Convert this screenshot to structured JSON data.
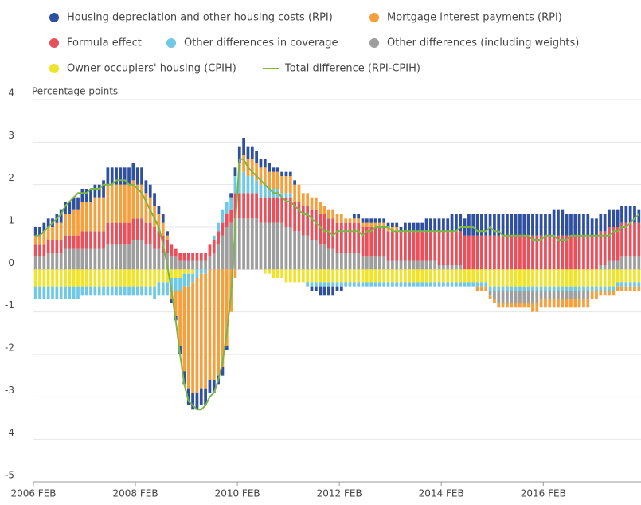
{
  "chart_data": {
    "type": "bar",
    "stacked": true,
    "y_label": "Percentage points",
    "categories": [
      "2006 FEB",
      null,
      null,
      null,
      null,
      null,
      null,
      null,
      null,
      null,
      null,
      null,
      null,
      null,
      null,
      null,
      null,
      null,
      null,
      null,
      null,
      null,
      null,
      null,
      "2008 FEB",
      null,
      null,
      null,
      null,
      null,
      null,
      null,
      null,
      null,
      null,
      null,
      null,
      null,
      null,
      null,
      null,
      null,
      null,
      null,
      null,
      null,
      null,
      null,
      "2010 FEB",
      null,
      null,
      null,
      null,
      null,
      null,
      null,
      null,
      null,
      null,
      null,
      null,
      null,
      null,
      null,
      null,
      null,
      null,
      null,
      null,
      null,
      null,
      null,
      "2012 FEB",
      null,
      null,
      null,
      null,
      null,
      null,
      null,
      null,
      null,
      null,
      null,
      null,
      null,
      null,
      null,
      null,
      null,
      null,
      null,
      null,
      null,
      null,
      null,
      "2014 FEB",
      null,
      null,
      null,
      null,
      null,
      null,
      null,
      null,
      null,
      null,
      null,
      null,
      null,
      null,
      null,
      null,
      null,
      null,
      null,
      null,
      null,
      null,
      null,
      "2016 FEB",
      null,
      null,
      null,
      null,
      null,
      null,
      null,
      null,
      null,
      null,
      null,
      null,
      null,
      null,
      null,
      null,
      null,
      null,
      null,
      null,
      null,
      null
    ],
    "ylim": [
      -5,
      4
    ],
    "yticks": [
      4,
      3,
      2,
      1,
      0,
      -1,
      -2,
      -3,
      -4,
      -5
    ],
    "grid": true,
    "series": [
      {
        "name": "Housing depreciation and other housing costs (RPI)",
        "color": "#2f4f9f",
        "values": [
          0.2,
          0.2,
          0.2,
          0.2,
          0.2,
          0.2,
          0.3,
          0.3,
          0.3,
          0.3,
          0.3,
          0.3,
          0.3,
          0.3,
          0.3,
          0.3,
          0.4,
          0.4,
          0.4,
          0.4,
          0.4,
          0.4,
          0.4,
          0.4,
          0.4,
          0.4,
          0.3,
          0.3,
          0.3,
          0.2,
          0.2,
          0.1,
          -0.1,
          -0.1,
          -0.2,
          -0.3,
          -0.4,
          -0.4,
          -0.4,
          -0.4,
          -0.4,
          -0.3,
          -0.3,
          -0.2,
          -0.2,
          -0.1,
          0.1,
          0.2,
          0.4,
          0.4,
          0.3,
          0.3,
          0.3,
          0.2,
          0.2,
          0.2,
          0.1,
          0.1,
          0.1,
          0.1,
          0.1,
          0.1,
          0,
          0,
          0,
          -0.1,
          -0.1,
          -0.2,
          -0.2,
          -0.2,
          -0.2,
          -0.1,
          -0.1,
          0,
          0,
          0.1,
          0.1,
          0.1,
          0.1,
          0.1,
          0.1,
          0.1,
          0.1,
          0.1,
          0.1,
          0.1,
          0.1,
          0.2,
          0.2,
          0.2,
          0.2,
          0.2,
          0.3,
          0.3,
          0.3,
          0.3,
          0.3,
          0.3,
          0.4,
          0.4,
          0.4,
          0.4,
          0.5,
          0.5,
          0.5,
          0.5,
          0.5,
          0.5,
          0.5,
          0.5,
          0.5,
          0.5,
          0.5,
          0.5,
          0.5,
          0.5,
          0.5,
          0.5,
          0.5,
          0.5,
          0.5,
          0.5,
          0.6,
          0.6,
          0.6,
          0.5,
          0.5,
          0.5,
          0.5,
          0.5,
          0.5,
          0.4,
          0.4,
          0.4,
          0.4,
          0.4,
          0.4,
          0.4,
          0.4,
          0.4,
          0.4,
          0.4,
          0.3
        ]
      },
      {
        "name": "Mortgage interest payments (RPI)",
        "color": "#f5a03c",
        "values": [
          0.2,
          0.2,
          0.3,
          0.3,
          0.3,
          0.4,
          0.4,
          0.5,
          0.5,
          0.6,
          0.6,
          0.7,
          0.7,
          0.7,
          0.8,
          0.8,
          0.8,
          0.9,
          0.9,
          0.9,
          0.9,
          0.9,
          0.9,
          0.9,
          0.8,
          0.8,
          0.7,
          0.6,
          0.5,
          0.4,
          0.3,
          0.1,
          -0.2,
          -0.6,
          -1.3,
          -2.0,
          -2.4,
          -2.6,
          -2.7,
          -2.7,
          -2.7,
          -2.6,
          -2.6,
          -2.5,
          -2.3,
          -1.8,
          -1.0,
          -0.2,
          0.2,
          0.4,
          0.4,
          0.4,
          0.4,
          0.4,
          0.4,
          0.4,
          0.4,
          0.4,
          0.4,
          0.4,
          0.4,
          0.4,
          0.4,
          0.3,
          0.3,
          0.3,
          0.3,
          0.3,
          0.2,
          0.2,
          0.2,
          0.2,
          0.2,
          0.1,
          0.1,
          0.1,
          0.1,
          0.1,
          0.1,
          0.1,
          0.1,
          0.1,
          0.1,
          0.1,
          0.1,
          0.1,
          0,
          0,
          0,
          0,
          0,
          0,
          0,
          0,
          0,
          0,
          0,
          0,
          0,
          0,
          0,
          0,
          0,
          0,
          -0.1,
          -0.1,
          -0.1,
          -0.1,
          -0.1,
          -0.1,
          -0.1,
          -0.1,
          -0.1,
          -0.1,
          -0.1,
          -0.1,
          -0.1,
          -0.2,
          -0.2,
          -0.2,
          -0.2,
          -0.2,
          -0.2,
          -0.2,
          -0.2,
          -0.2,
          -0.2,
          -0.2,
          -0.2,
          -0.2,
          -0.2,
          -0.2,
          -0.2,
          -0.1,
          -0.1,
          -0.1,
          -0.1,
          -0.1,
          -0.1,
          -0.1,
          -0.1,
          -0.1,
          -0.1
        ]
      },
      {
        "name": "Formula effect",
        "color": "#e8505b",
        "values": [
          0.3,
          0.3,
          0.3,
          0.3,
          0.3,
          0.3,
          0.3,
          0.3,
          0.3,
          0.3,
          0.3,
          0.4,
          0.4,
          0.4,
          0.4,
          0.4,
          0.4,
          0.5,
          0.5,
          0.5,
          0.5,
          0.5,
          0.5,
          0.5,
          0.5,
          0.5,
          0.5,
          0.5,
          0.5,
          0.4,
          0.4,
          0.3,
          0.3,
          0.2,
          0.2,
          0.2,
          0.2,
          0.2,
          0.2,
          0.2,
          0.2,
          0.3,
          0.3,
          0.3,
          0.3,
          0.3,
          0.3,
          0.6,
          0.6,
          0.6,
          0.6,
          0.6,
          0.6,
          0.6,
          0.6,
          0.6,
          0.6,
          0.6,
          0.6,
          0.7,
          0.7,
          0.7,
          0.7,
          0.7,
          0.7,
          0.7,
          0.7,
          0.7,
          0.7,
          0.7,
          0.7,
          0.7,
          0.7,
          0.7,
          0.7,
          0.7,
          0.7,
          0.7,
          0.7,
          0.7,
          0.7,
          0.7,
          0.7,
          0.7,
          0.7,
          0.7,
          0.7,
          0.7,
          0.7,
          0.7,
          0.7,
          0.7,
          0.7,
          0.7,
          0.7,
          0.8,
          0.8,
          0.8,
          0.8,
          0.8,
          0.8,
          0.8,
          0.8,
          0.8,
          0.8,
          0.8,
          0.8,
          0.8,
          0.8,
          0.8,
          0.8,
          0.8,
          0.8,
          0.8,
          0.8,
          0.8,
          0.8,
          0.8,
          0.8,
          0.8,
          0.8,
          0.8,
          0.8,
          0.8,
          0.8,
          0.8,
          0.8,
          0.8,
          0.8,
          0.8,
          0.8,
          0.8,
          0.8,
          0.8,
          0.8,
          0.8,
          0.8,
          0.8,
          0.8,
          0.8,
          0.8,
          0.8,
          0.8
        ]
      },
      {
        "name": "Other differences in coverage",
        "color": "#6fc8e6",
        "values": [
          -0.3,
          -0.3,
          -0.3,
          -0.3,
          -0.3,
          -0.3,
          -0.3,
          -0.3,
          -0.3,
          -0.3,
          -0.3,
          -0.2,
          -0.2,
          -0.2,
          -0.2,
          -0.2,
          -0.2,
          -0.2,
          -0.2,
          -0.2,
          -0.2,
          -0.2,
          -0.2,
          -0.2,
          -0.2,
          -0.2,
          -0.2,
          -0.2,
          -0.3,
          -0.3,
          -0.3,
          -0.3,
          -0.3,
          -0.3,
          -0.3,
          -0.3,
          -0.3,
          -0.2,
          -0.2,
          -0.1,
          -0.1,
          0,
          0.1,
          0.2,
          0.3,
          0.3,
          0.3,
          0.4,
          0.5,
          0.5,
          0.4,
          0.4,
          0.3,
          0.3,
          0.3,
          0.2,
          0.2,
          0.2,
          0.1,
          0.1,
          0.1,
          0,
          0,
          0,
          -0.1,
          -0.1,
          -0.1,
          -0.1,
          -0.1,
          -0.1,
          -0.1,
          -0.1,
          -0.1,
          -0.1,
          -0.1,
          -0.1,
          -0.1,
          -0.1,
          -0.1,
          -0.1,
          -0.1,
          -0.1,
          -0.1,
          -0.1,
          -0.1,
          -0.1,
          -0.1,
          -0.1,
          -0.1,
          -0.1,
          -0.1,
          -0.1,
          -0.1,
          -0.1,
          -0.1,
          -0.1,
          -0.1,
          -0.1,
          -0.1,
          -0.1,
          -0.1,
          -0.1,
          -0.1,
          -0.1,
          -0.1,
          -0.1,
          -0.1,
          -0.1,
          -0.1,
          -0.1,
          -0.1,
          -0.1,
          -0.1,
          -0.1,
          -0.1,
          -0.1,
          -0.1,
          -0.1,
          -0.1,
          -0.1,
          -0.1,
          -0.1,
          -0.1,
          -0.1,
          -0.1,
          -0.1,
          -0.1,
          -0.1,
          -0.1,
          -0.1,
          -0.1,
          -0.1,
          -0.1,
          -0.1,
          -0.1,
          -0.1,
          -0.1,
          -0.1,
          -0.1,
          -0.1,
          -0.1,
          -0.1,
          -0.1
        ]
      },
      {
        "name": "Other differences (including weights)",
        "color": "#9e9e9e",
        "values": [
          0.3,
          0.3,
          0.3,
          0.4,
          0.4,
          0.4,
          0.4,
          0.5,
          0.5,
          0.5,
          0.5,
          0.5,
          0.5,
          0.5,
          0.5,
          0.5,
          0.5,
          0.6,
          0.6,
          0.6,
          0.6,
          0.6,
          0.6,
          0.7,
          0.7,
          0.7,
          0.6,
          0.6,
          0.5,
          0.5,
          0.4,
          0.4,
          0.3,
          0.3,
          0.2,
          0.2,
          0.2,
          0.2,
          0.2,
          0.2,
          0.2,
          0.3,
          0.4,
          0.6,
          0.8,
          1.0,
          1.1,
          1.2,
          1.2,
          1.2,
          1.2,
          1.2,
          1.2,
          1.1,
          1.1,
          1.1,
          1.1,
          1.1,
          1.1,
          1.0,
          1.0,
          0.9,
          0.9,
          0.8,
          0.8,
          0.7,
          0.7,
          0.6,
          0.6,
          0.5,
          0.5,
          0.4,
          0.4,
          0.4,
          0.4,
          0.4,
          0.4,
          0.3,
          0.3,
          0.3,
          0.3,
          0.3,
          0.3,
          0.2,
          0.2,
          0.2,
          0.2,
          0.2,
          0.2,
          0.2,
          0.2,
          0.2,
          0.2,
          0.2,
          0.2,
          0.1,
          0.1,
          0.1,
          0.1,
          0.1,
          0.1,
          0,
          0,
          0,
          0,
          0,
          0,
          -0.1,
          -0.2,
          -0.3,
          -0.3,
          -0.3,
          -0.3,
          -0.3,
          -0.3,
          -0.3,
          -0.3,
          -0.3,
          -0.3,
          -0.2,
          -0.2,
          -0.2,
          -0.2,
          -0.2,
          -0.2,
          -0.2,
          -0.2,
          -0.2,
          -0.2,
          -0.2,
          -0.2,
          0,
          0,
          0.1,
          0.1,
          0.2,
          0.2,
          0.2,
          0.3,
          0.3,
          0.3,
          0.3,
          0.3
        ]
      },
      {
        "name": "Owner occupiers' housing (CPIH)",
        "color": "#f0e42a",
        "values": [
          -0.4,
          -0.4,
          -0.4,
          -0.4,
          -0.4,
          -0.4,
          -0.4,
          -0.4,
          -0.4,
          -0.4,
          -0.4,
          -0.4,
          -0.4,
          -0.4,
          -0.4,
          -0.4,
          -0.4,
          -0.4,
          -0.4,
          -0.4,
          -0.4,
          -0.4,
          -0.4,
          -0.4,
          -0.4,
          -0.4,
          -0.4,
          -0.4,
          -0.4,
          -0.3,
          -0.3,
          -0.3,
          -0.2,
          -0.2,
          -0.2,
          -0.1,
          -0.1,
          -0.1,
          0,
          0,
          0.1,
          0.1,
          0.1,
          0.2,
          0.2,
          0.2,
          0.3,
          0.3,
          0.3,
          0.2,
          0.2,
          0.1,
          0.1,
          0,
          -0.1,
          -0.1,
          -0.2,
          -0.2,
          -0.2,
          -0.3,
          -0.3,
          -0.3,
          -0.3,
          -0.3,
          -0.3,
          -0.3,
          -0.3,
          -0.3,
          -0.3,
          -0.3,
          -0.3,
          -0.3,
          -0.3,
          -0.3,
          -0.3,
          -0.3,
          -0.3,
          -0.3,
          -0.3,
          -0.3,
          -0.3,
          -0.3,
          -0.3,
          -0.3,
          -0.3,
          -0.3,
          -0.3,
          -0.3,
          -0.3,
          -0.3,
          -0.3,
          -0.3,
          -0.3,
          -0.3,
          -0.3,
          -0.3,
          -0.3,
          -0.3,
          -0.3,
          -0.3,
          -0.3,
          -0.3,
          -0.3,
          -0.3,
          -0.3,
          -0.3,
          -0.3,
          -0.4,
          -0.4,
          -0.4,
          -0.4,
          -0.4,
          -0.4,
          -0.4,
          -0.4,
          -0.4,
          -0.4,
          -0.4,
          -0.4,
          -0.4,
          -0.4,
          -0.4,
          -0.4,
          -0.4,
          -0.4,
          -0.4,
          -0.4,
          -0.4,
          -0.4,
          -0.4,
          -0.4,
          -0.4,
          -0.4,
          -0.4,
          -0.4,
          -0.4,
          -0.4,
          -0.3,
          -0.3,
          -0.3,
          -0.3,
          -0.3,
          -0.3
        ]
      },
      {
        "name": "Total difference (RPI-CPIH)",
        "color": "#7ab648",
        "type": "line",
        "values": [
          0.8,
          0.8,
          0.9,
          1.0,
          1.1,
          1.2,
          1.3,
          1.5,
          1.6,
          1.7,
          1.8,
          1.8,
          1.8,
          1.9,
          1.9,
          1.9,
          2.0,
          2.0,
          2.0,
          2.1,
          2.1,
          2.1,
          2.0,
          2.0,
          1.9,
          1.8,
          1.6,
          1.4,
          1.2,
          1.0,
          0.6,
          0.1,
          -0.5,
          -1.2,
          -2.0,
          -2.7,
          -3.1,
          -3.2,
          -3.3,
          -3.3,
          -3.2,
          -3.0,
          -2.9,
          -2.6,
          -2.2,
          -1.5,
          -0.6,
          1.0,
          2.6,
          2.6,
          2.4,
          2.3,
          2.2,
          2.1,
          2.0,
          1.9,
          1.8,
          1.8,
          1.7,
          1.6,
          1.6,
          1.5,
          1.4,
          1.3,
          1.3,
          1.2,
          1.1,
          1.0,
          0.9,
          0.9,
          0.8,
          0.9,
          0.9,
          0.9,
          0.9,
          0.9,
          0.9,
          0.8,
          0.9,
          0.9,
          1.0,
          1.0,
          1.0,
          1.0,
          0.9,
          0.9,
          0.9,
          0.9,
          0.9,
          0.9,
          0.9,
          0.9,
          0.9,
          0.9,
          0.9,
          0.9,
          0.9,
          0.9,
          0.9,
          0.9,
          1.0,
          1.0,
          1.0,
          1.0,
          0.9,
          0.9,
          0.9,
          1.0,
          0.9,
          0.9,
          0.8,
          0.8,
          0.8,
          0.8,
          0.8,
          0.8,
          0.8,
          0.7,
          0.7,
          0.7,
          0.8,
          0.8,
          0.8,
          0.7,
          0.7,
          0.7,
          0.8,
          0.8,
          0.8,
          0.8,
          0.8,
          0.8,
          0.8,
          0.8,
          0.8,
          0.8,
          0.9,
          0.9,
          1.0,
          1.0,
          1.1,
          1.2,
          1.3
        ]
      }
    ]
  }
}
